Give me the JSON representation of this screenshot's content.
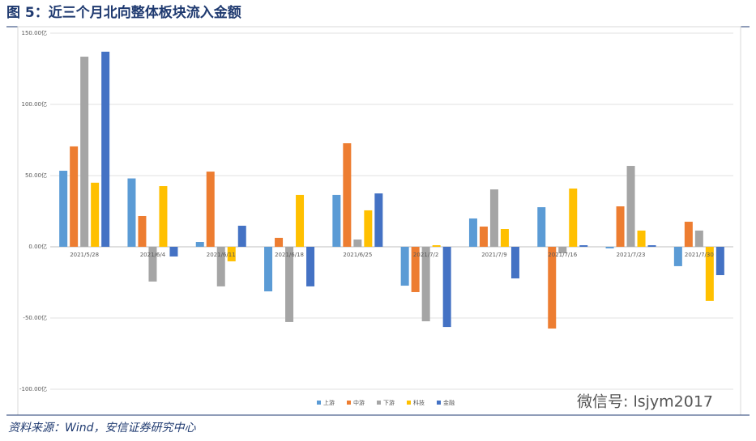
{
  "title": "图 5：近三个月北向整体板块流入金额",
  "source": "资料来源：Wind，安信证券研究中心",
  "watermark": "微信号: lsjym2017",
  "chart_data": {
    "type": "bar",
    "categories": [
      "2021/5/28",
      "2021/6/4",
      "2021/6/11",
      "2021/6/18",
      "2021/6/25",
      "2021/7/2",
      "2021/7/9",
      "2021/7/16",
      "2021/7/23",
      "2021/7/30"
    ],
    "series": [
      {
        "name": "上游",
        "color": "#5b9bd5",
        "values": [
          53.4,
          48,
          3.4,
          -31.3,
          36.4,
          -27.3,
          19.9,
          27.8,
          -1.1,
          -13.6
        ]
      },
      {
        "name": "中游",
        "color": "#ed7d31",
        "values": [
          70.5,
          21.6,
          52.8,
          6.3,
          72.7,
          -31.8,
          14.2,
          -57.4,
          28.4,
          17.6
        ]
      },
      {
        "name": "下游",
        "color": "#a5a5a5",
        "values": [
          133.5,
          -24.4,
          -27.8,
          -52.8,
          5.1,
          -52.3,
          40.3,
          -4.5,
          56.8,
          11.4
        ]
      },
      {
        "name": "科技",
        "color": "#ffc000",
        "values": [
          45,
          42.6,
          -10.2,
          36.4,
          25.6,
          1.1,
          12.5,
          40.9,
          11.4,
          -38
        ]
      },
      {
        "name": "金融",
        "color": "#4472c4",
        "values": [
          137,
          -6.8,
          14.8,
          -27.8,
          37.5,
          -56.3,
          -22.2,
          1.1,
          1.1,
          -19.9
        ]
      }
    ],
    "ylim": [
      -100,
      150
    ],
    "yticks": [
      {
        "value": -100,
        "label": "-100.00亿"
      },
      {
        "value": -50,
        "label": "-50.00亿"
      },
      {
        "value": 0,
        "label": "0.00亿"
      },
      {
        "value": 50,
        "label": "50.00亿"
      },
      {
        "value": 100,
        "label": "100.00亿"
      },
      {
        "value": 150,
        "label": "150.00亿"
      }
    ],
    "grid": true,
    "legend": "bottom"
  }
}
